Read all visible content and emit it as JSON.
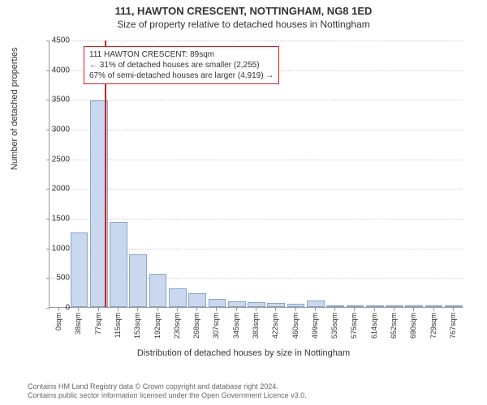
{
  "title": "111, HAWTON CRESCENT, NOTTINGHAM, NG8 1ED",
  "subtitle": "Size of property relative to detached houses in Nottingham",
  "chart": {
    "type": "histogram",
    "ylabel": "Number of detached properties",
    "xlabel": "Distribution of detached houses by size in Nottingham",
    "ylim": [
      0,
      4500
    ],
    "ytick_step": 500,
    "yticks": [
      0,
      500,
      1000,
      1500,
      2000,
      2500,
      3000,
      3500,
      4000,
      4500
    ],
    "xticks": [
      "0sqm",
      "38sqm",
      "77sqm",
      "115sqm",
      "153sqm",
      "192sqm",
      "230sqm",
      "268sqm",
      "307sqm",
      "345sqm",
      "383sqm",
      "422sqm",
      "460sqm",
      "499sqm",
      "535sqm",
      "575sqm",
      "614sqm",
      "652sqm",
      "690sqm",
      "729sqm",
      "767sqm"
    ],
    "bar_color": "#c9d8ee",
    "bar_border_color": "#8aa5c9",
    "grid_color": "#cccccc",
    "background_color": "#ffffff",
    "axis_color": "#999999",
    "reference_line": {
      "x_index": 2.32,
      "color": "#d02020"
    },
    "values": [
      0,
      1250,
      3480,
      1430,
      880,
      560,
      310,
      230,
      130,
      100,
      80,
      70,
      60,
      110,
      30,
      20,
      15,
      10,
      10,
      8,
      8
    ],
    "annotation": {
      "border_color": "#d02020",
      "lines": [
        "111 HAWTON CRESCENT: 89sqm",
        "← 31% of detached houses are smaller (2,255)",
        "67% of semi-detached houses are larger (4,919) →"
      ]
    }
  },
  "footer": {
    "line1": "Contains HM Land Registry data © Crown copyright and database right 2024.",
    "line2": "Contains public sector information licensed under the Open Government Licence v3.0."
  },
  "fonts": {
    "title_size": 13,
    "subtitle_size": 12,
    "label_size": 11,
    "tick_size": 10,
    "annotation_size": 10,
    "footer_size": 9
  }
}
